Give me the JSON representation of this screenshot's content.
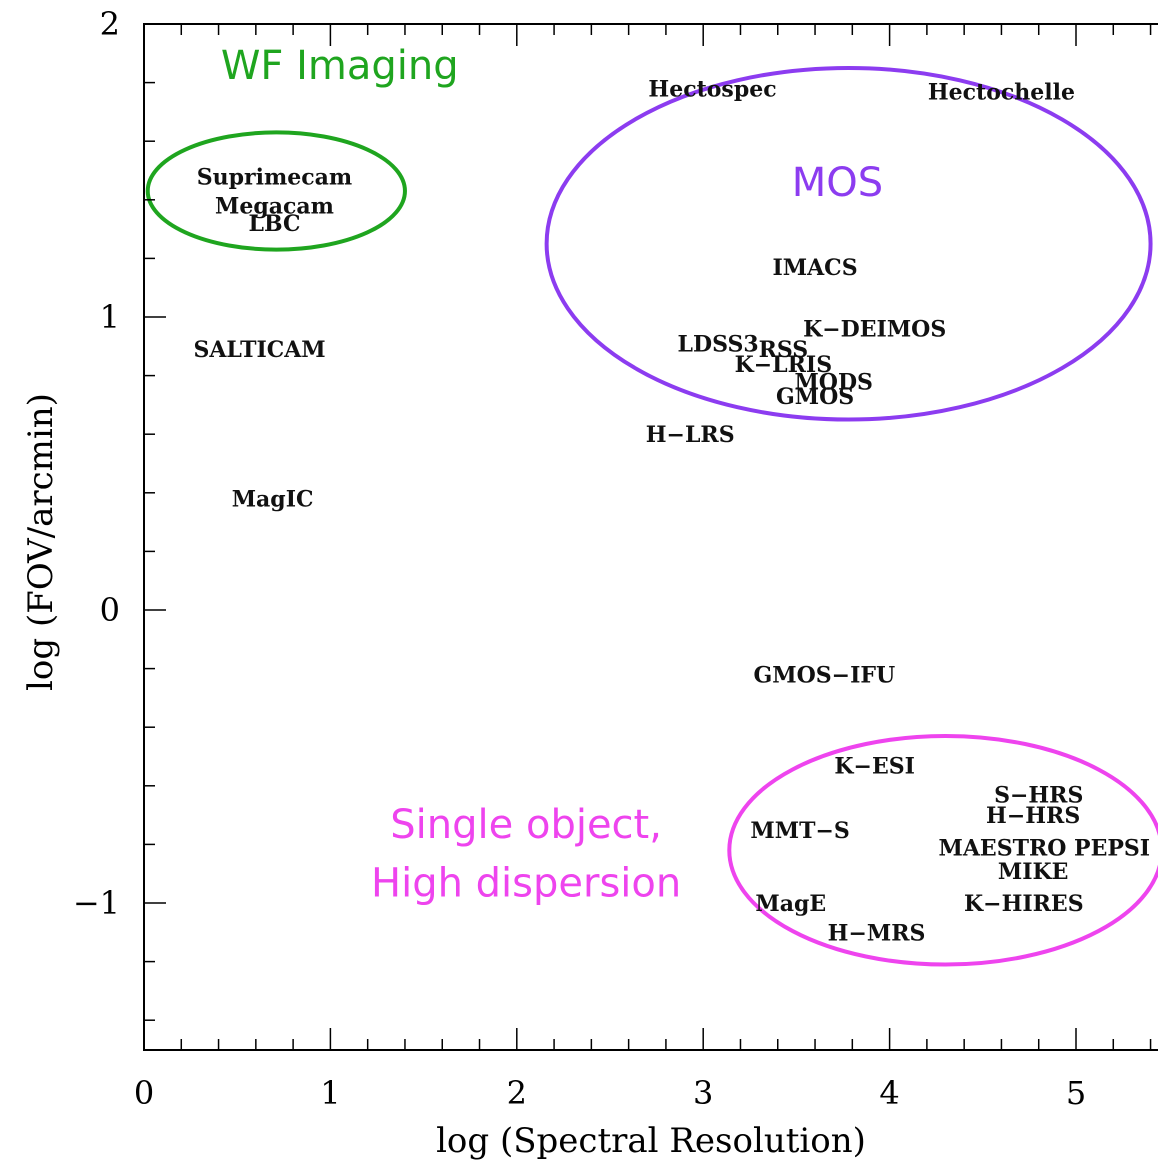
{
  "chart_data": {
    "type": "scatter",
    "xlabel": "log (Spectral Resolution)",
    "ylabel": "log (FOV/arcmin)",
    "xlim": [
      0,
      5.5
    ],
    "ylim": [
      -1.45,
      2
    ],
    "x_ticks": [
      {
        "value": 0,
        "label": "0"
      },
      {
        "value": 1,
        "label": "1"
      },
      {
        "value": 2,
        "label": "2"
      },
      {
        "value": 3,
        "label": "3"
      },
      {
        "value": 4,
        "label": "4"
      },
      {
        "value": 5,
        "label": "5"
      }
    ],
    "y_ticks": [
      {
        "value": -1,
        "label": "−1"
      },
      {
        "value": 0,
        "label": "0"
      },
      {
        "value": 1,
        "label": "1"
      },
      {
        "value": 2,
        "label": "2"
      }
    ],
    "grid": false,
    "points": [
      {
        "label": "Hectospec",
        "x": 3.05,
        "y": 1.78
      },
      {
        "label": "Hectochelle",
        "x": 4.6,
        "y": 1.77
      },
      {
        "label": "Suprimecam",
        "x": 0.7,
        "y": 1.48
      },
      {
        "label": "Megacam",
        "x": 0.7,
        "y": 1.38
      },
      {
        "label": "LBC",
        "x": 0.7,
        "y": 1.32
      },
      {
        "label": "IMACS",
        "x": 3.6,
        "y": 1.17
      },
      {
        "label": "K−DEIMOS",
        "x": 3.92,
        "y": 0.96
      },
      {
        "label": "LDSS3",
        "x": 3.08,
        "y": 0.91
      },
      {
        "label": "RSS",
        "x": 3.43,
        "y": 0.89
      },
      {
        "label": "K−LRIS",
        "x": 3.43,
        "y": 0.84
      },
      {
        "label": "MODS",
        "x": 3.7,
        "y": 0.78
      },
      {
        "label": "GMOS",
        "x": 3.6,
        "y": 0.73
      },
      {
        "label": "SALTICAM",
        "x": 0.62,
        "y": 0.89
      },
      {
        "label": "H−LRS",
        "x": 2.93,
        "y": 0.6
      },
      {
        "label": "MagIC",
        "x": 0.69,
        "y": 0.38
      },
      {
        "label": "GMOS−IFU",
        "x": 3.65,
        "y": -0.22
      },
      {
        "label": "K−ESI",
        "x": 3.92,
        "y": -0.53
      },
      {
        "label": "S−HRS",
        "x": 4.8,
        "y": -0.63
      },
      {
        "label": "H−HRS",
        "x": 4.77,
        "y": -0.7
      },
      {
        "label": "MMT−S",
        "x": 3.52,
        "y": -0.75
      },
      {
        "label": "MAESTRO PEPSI",
        "x": 4.83,
        "y": -0.81
      },
      {
        "label": "MIKE",
        "x": 4.77,
        "y": -0.89
      },
      {
        "label": "MagE",
        "x": 3.47,
        "y": -1.0
      },
      {
        "label": "K−HIRES",
        "x": 4.72,
        "y": -1.0
      },
      {
        "label": "H−MRS",
        "x": 3.93,
        "y": -1.1
      }
    ],
    "annotations": [
      {
        "text": "WF Imaging",
        "color": "#1fa51f",
        "x": 1.05,
        "y": 1.86
      },
      {
        "text": "MOS",
        "color": "#8c3cf0",
        "x": 3.72,
        "y": 1.46
      },
      {
        "text": "Single object,",
        "color": "#ee44ee",
        "x": 2.05,
        "y": -0.73
      },
      {
        "text": "High dispersion",
        "color": "#ee44ee",
        "x": 2.05,
        "y": -0.93
      }
    ],
    "regions": [
      {
        "name": "WF Imaging",
        "color": "#1fa51f",
        "cx": 0.71,
        "cy": 1.43,
        "rx": 0.69,
        "ry": 0.2
      },
      {
        "name": "MOS",
        "color": "#8c3cf0",
        "cx": 3.78,
        "cy": 1.25,
        "rx": 1.62,
        "ry": 0.6
      },
      {
        "name": "Single object, High dispersion",
        "color": "#ee44ee",
        "cx": 4.3,
        "cy": -0.82,
        "rx": 1.16,
        "ry": 0.39
      }
    ]
  }
}
